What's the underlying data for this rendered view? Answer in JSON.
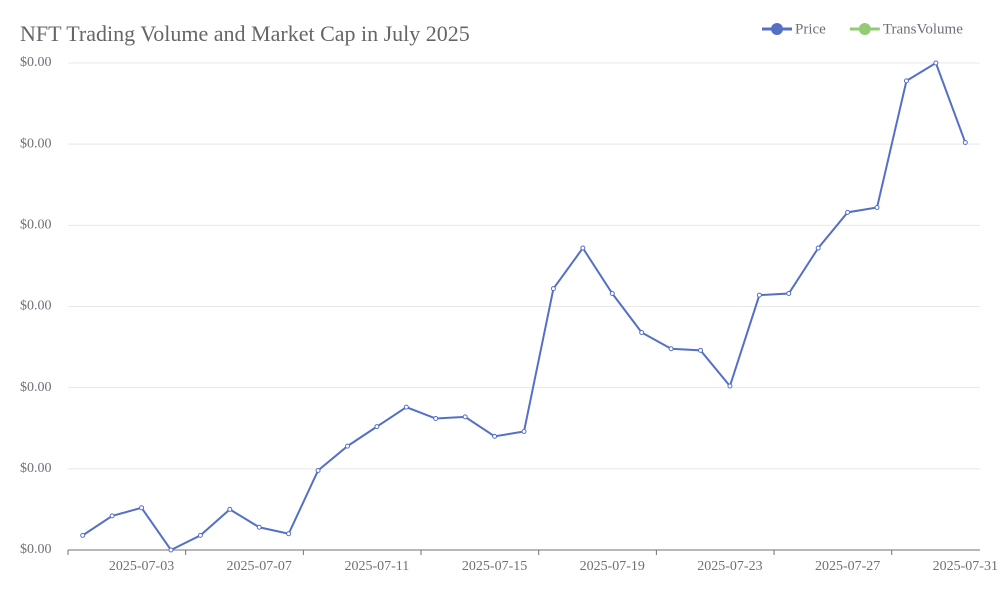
{
  "chart_data": {
    "type": "line",
    "title": "NFT Trading Volume and Market Cap in July 2025",
    "categories": [
      null,
      null,
      "2025-07-03",
      null,
      null,
      null,
      "2025-07-07",
      null,
      null,
      null,
      "2025-07-11",
      null,
      null,
      null,
      "2025-07-15",
      null,
      null,
      null,
      "2025-07-19",
      null,
      null,
      null,
      "2025-07-23",
      null,
      null,
      null,
      "2025-07-27",
      null,
      null,
      null,
      "2025-07-31"
    ],
    "series": [
      {
        "name": "Price",
        "color": "#5470c6",
        "values": [
          9e-05,
          0.00021,
          0.00026,
          0,
          9e-05,
          0.00025,
          0.00014,
          0.0001,
          0.00049,
          0.00064,
          0.00076,
          0.00088,
          0.00081,
          0.00082,
          0.0007,
          0.00073,
          0.00161,
          0.00186,
          0.00158,
          0.00134,
          0.00124,
          0.00123,
          0.00101,
          0.00157,
          0.00158,
          0.00186,
          0.00208,
          0.00211,
          0.00289,
          0.003,
          0.00251
        ]
      },
      {
        "name": "TransVolume",
        "color": "#91cc75",
        "values": [
          null,
          null,
          null,
          null,
          null,
          null,
          null,
          null,
          null,
          null,
          null,
          null,
          null,
          null,
          null,
          null,
          null,
          null,
          null,
          null,
          null,
          null,
          null,
          null,
          null,
          null,
          null,
          null,
          null,
          null,
          null
        ]
      }
    ],
    "ylim": [
      0,
      0.003
    ],
    "yticks": [
      {
        "value": 0,
        "label": "$0.00"
      },
      {
        "value": 0.0005,
        "label": "$0.00"
      },
      {
        "value": 0.001,
        "label": "$0.00"
      },
      {
        "value": 0.0015,
        "label": "$0.00"
      },
      {
        "value": 0.002,
        "label": "$0.00"
      },
      {
        "value": 0.0025,
        "label": "$0.00"
      },
      {
        "value": 0.003,
        "label": "$0.00"
      }
    ],
    "grid": true,
    "legend": "top-right"
  }
}
